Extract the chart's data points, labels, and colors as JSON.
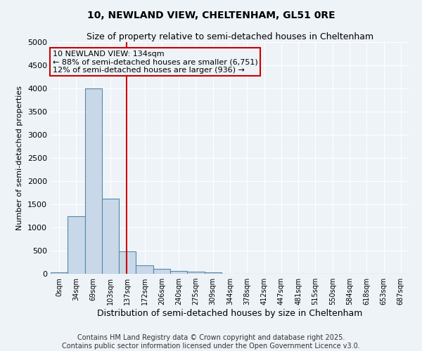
{
  "title": "10, NEWLAND VIEW, CHELTENHAM, GL51 0RE",
  "subtitle": "Size of property relative to semi-detached houses in Cheltenham",
  "xlabel": "Distribution of semi-detached houses by size in Cheltenham",
  "ylabel": "Number of semi-detached properties",
  "bar_labels": [
    "0sqm",
    "34sqm",
    "69sqm",
    "103sqm",
    "137sqm",
    "172sqm",
    "206sqm",
    "240sqm",
    "275sqm",
    "309sqm",
    "344sqm",
    "378sqm",
    "412sqm",
    "447sqm",
    "481sqm",
    "515sqm",
    "550sqm",
    "584sqm",
    "618sqm",
    "653sqm",
    "687sqm"
  ],
  "bar_values": [
    34,
    1250,
    4000,
    1620,
    480,
    180,
    110,
    55,
    40,
    35,
    0,
    0,
    0,
    0,
    0,
    0,
    0,
    0,
    0,
    0,
    0
  ],
  "bar_color": "#c8d8e8",
  "bar_edge_color": "#5588aa",
  "background_color": "#eef3f8",
  "grid_color": "#ffffff",
  "ylim": [
    0,
    5000
  ],
  "yticks": [
    0,
    500,
    1000,
    1500,
    2000,
    2500,
    3000,
    3500,
    4000,
    4500,
    5000
  ],
  "property_line_x": 3.94,
  "property_line_color": "#cc0000",
  "annotation_text": "10 NEWLAND VIEW: 134sqm\n← 88% of semi-detached houses are smaller (6,751)\n12% of semi-detached houses are larger (936) →",
  "annotation_box_color": "#cc0000",
  "footer_text": "Contains HM Land Registry data © Crown copyright and database right 2025.\nContains public sector information licensed under the Open Government Licence v3.0.",
  "title_fontsize": 10,
  "subtitle_fontsize": 9,
  "annotation_fontsize": 8,
  "footer_fontsize": 7
}
